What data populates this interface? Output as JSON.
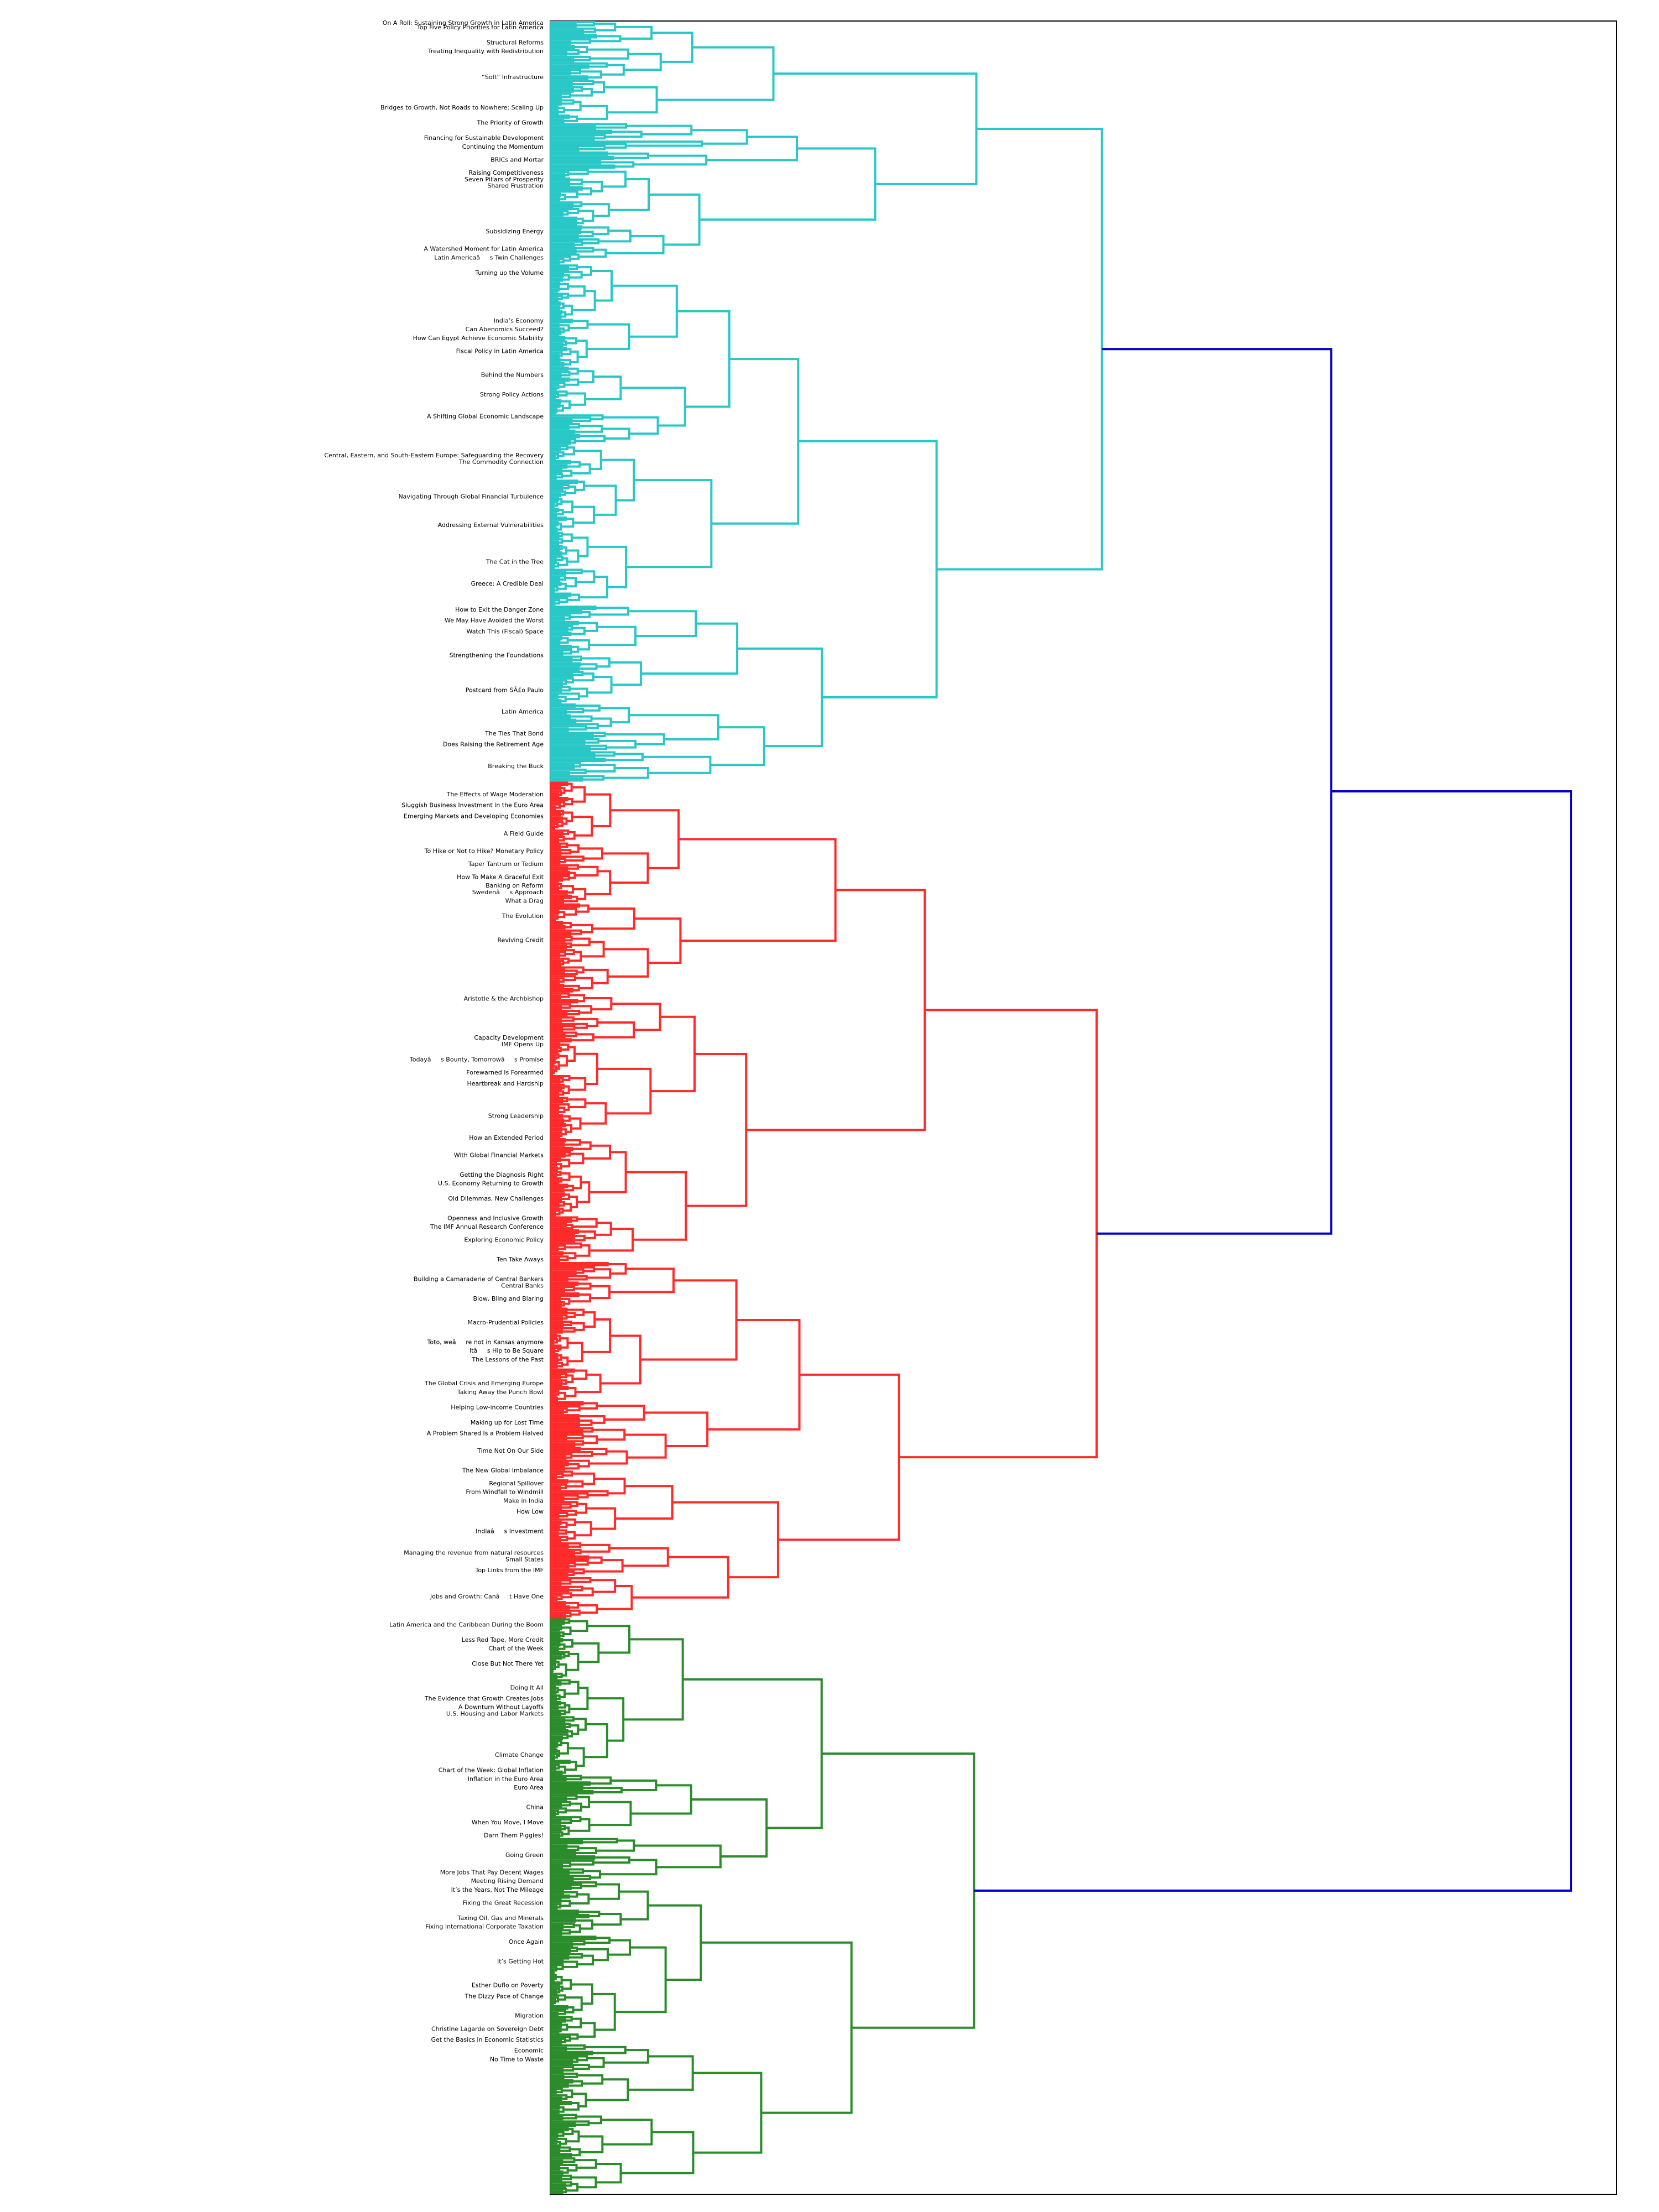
{
  "chart_data": {
    "type": "dendrogram",
    "orientation": "horizontal",
    "grid": false,
    "link_colors": {
      "cluster-1": "#2ac7c7",
      "cluster-2": "#ff2a2a",
      "cluster-3": "#2a8c2a",
      "above-threshold": "#0000cc"
    },
    "clusters": [
      {
        "id": "cluster-1",
        "color": "#2ac7c7",
        "leaf_share": 0.35
      },
      {
        "id": "cluster-2",
        "color": "#ff2a2a",
        "leaf_share": 0.385
      },
      {
        "id": "cluster-3",
        "color": "#2a8c2a",
        "leaf_share": 0.265
      }
    ],
    "top_merge": {
      "left": "cluster-1+cluster-2",
      "right": "cluster-3"
    },
    "legible_leaf_labels": [
      {
        "text": "On A Roll: Sustaining Strong Growth in Latin America",
        "cluster": "cluster-1",
        "pos": 0.001
      },
      {
        "text": "Top Five Policy Priorities for Latin America",
        "cluster": "cluster-1",
        "pos": 0.003
      },
      {
        "text": "Structural Reforms",
        "cluster": "cluster-1",
        "pos": 0.01
      },
      {
        "text": "Treating Inequality with Redistribution",
        "cluster": "cluster-1",
        "pos": 0.014
      },
      {
        "text": "“Soft” Infrastructure",
        "cluster": "cluster-1",
        "pos": 0.026
      },
      {
        "text": "Bridges to Growth, Not Roads to Nowhere: Scaling Up",
        "cluster": "cluster-1",
        "pos": 0.04
      },
      {
        "text": "The Priority of Growth",
        "cluster": "cluster-1",
        "pos": 0.047
      },
      {
        "text": "Financing for Sustainable Development",
        "cluster": "cluster-1",
        "pos": 0.054
      },
      {
        "text": "Continuing the Momentum",
        "cluster": "cluster-1",
        "pos": 0.058
      },
      {
        "text": "BRICs and Mortar",
        "cluster": "cluster-1",
        "pos": 0.064
      },
      {
        "text": "Raising Competitiveness",
        "cluster": "cluster-1",
        "pos": 0.07
      },
      {
        "text": "Seven Pillars of Prosperity",
        "cluster": "cluster-1",
        "pos": 0.073
      },
      {
        "text": "Shared Frustration",
        "cluster": "cluster-1",
        "pos": 0.076
      },
      {
        "text": "Subsidizing Energy",
        "cluster": "cluster-1",
        "pos": 0.097
      },
      {
        "text": "A Watershed Moment for Latin America",
        "cluster": "cluster-1",
        "pos": 0.105
      },
      {
        "text": "Latin Americaâs Twin Challenges",
        "cluster": "cluster-1",
        "pos": 0.109
      },
      {
        "text": "Turning up the Volume",
        "cluster": "cluster-1",
        "pos": 0.116
      },
      {
        "text": "India’s Economy",
        "cluster": "cluster-1",
        "pos": 0.138
      },
      {
        "text": "Can Abenomics Succeed?",
        "cluster": "cluster-1",
        "pos": 0.142
      },
      {
        "text": "How Can Egypt Achieve Economic Stability",
        "cluster": "cluster-1",
        "pos": 0.146
      },
      {
        "text": "Fiscal Policy in Latin America",
        "cluster": "cluster-1",
        "pos": 0.152
      },
      {
        "text": "Behind the Numbers",
        "cluster": "cluster-1",
        "pos": 0.163
      },
      {
        "text": "Strong Policy Actions",
        "cluster": "cluster-1",
        "pos": 0.172
      },
      {
        "text": "A Shifting Global Economic Landscape",
        "cluster": "cluster-1",
        "pos": 0.182
      },
      {
        "text": "Central, Eastern, and South-Eastern Europe: Safeguarding the Recovery",
        "cluster": "cluster-1",
        "pos": 0.2
      },
      {
        "text": "The Commodity Connection",
        "cluster": "cluster-1",
        "pos": 0.203
      },
      {
        "text": "Navigating Through Global Financial Turbulence",
        "cluster": "cluster-1",
        "pos": 0.219
      },
      {
        "text": "Addressing External Vulnerabilities",
        "cluster": "cluster-1",
        "pos": 0.232
      },
      {
        "text": "The Cat in the Tree",
        "cluster": "cluster-1",
        "pos": 0.249
      },
      {
        "text": "Greece: A Credible Deal",
        "cluster": "cluster-1",
        "pos": 0.259
      },
      {
        "text": "How to Exit the Danger Zone",
        "cluster": "cluster-1",
        "pos": 0.271
      },
      {
        "text": "We May Have Avoided the Worst",
        "cluster": "cluster-1",
        "pos": 0.276
      },
      {
        "text": "Watch This (Fiscal) Space",
        "cluster": "cluster-1",
        "pos": 0.281
      },
      {
        "text": "Strengthening the Foundations",
        "cluster": "cluster-1",
        "pos": 0.292
      },
      {
        "text": "Postcard from SÃ£o Paulo",
        "cluster": "cluster-1",
        "pos": 0.308
      },
      {
        "text": "Latin America",
        "cluster": "cluster-1",
        "pos": 0.318
      },
      {
        "text": "The Ties That Bond",
        "cluster": "cluster-1",
        "pos": 0.328
      },
      {
        "text": "Does Raising the Retirement Age",
        "cluster": "cluster-2",
        "pos": 0.333
      },
      {
        "text": "Breaking the Buck",
        "cluster": "cluster-2",
        "pos": 0.343
      },
      {
        "text": "The Effects of Wage Moderation",
        "cluster": "cluster-2",
        "pos": 0.356
      },
      {
        "text": "Sluggish Business Investment in the Euro Area",
        "cluster": "cluster-2",
        "pos": 0.361
      },
      {
        "text": "Emerging Markets and Developing Economies",
        "cluster": "cluster-2",
        "pos": 0.366
      },
      {
        "text": "A Field Guide",
        "cluster": "cluster-2",
        "pos": 0.374
      },
      {
        "text": "To Hike or Not to Hike? Monetary Policy",
        "cluster": "cluster-2",
        "pos": 0.382
      },
      {
        "text": "Taper Tantrum or Tedium",
        "cluster": "cluster-2",
        "pos": 0.388
      },
      {
        "text": "How To Make A Graceful Exit",
        "cluster": "cluster-2",
        "pos": 0.394
      },
      {
        "text": "Banking on Reform",
        "cluster": "cluster-2",
        "pos": 0.398
      },
      {
        "text": "Swedenâs Approach",
        "cluster": "cluster-2",
        "pos": 0.401
      },
      {
        "text": "What a Drag",
        "cluster": "cluster-2",
        "pos": 0.405
      },
      {
        "text": "The Evolution",
        "cluster": "cluster-2",
        "pos": 0.412
      },
      {
        "text": "Reviving Credit",
        "cluster": "cluster-2",
        "pos": 0.423
      },
      {
        "text": "Aristotle & the Archbishop",
        "cluster": "cluster-2",
        "pos": 0.45
      },
      {
        "text": "Capacity Development",
        "cluster": "cluster-2",
        "pos": 0.468
      },
      {
        "text": "IMF Opens Up",
        "cluster": "cluster-2",
        "pos": 0.471
      },
      {
        "text": "Todayâs Bounty, Tomorrowâs Promise",
        "cluster": "cluster-2",
        "pos": 0.478
      },
      {
        "text": "Forewarned Is Forearmed",
        "cluster": "cluster-2",
        "pos": 0.484
      },
      {
        "text": "Heartbreak and Hardship",
        "cluster": "cluster-2",
        "pos": 0.489
      },
      {
        "text": "Strong Leadership",
        "cluster": "cluster-2",
        "pos": 0.504
      },
      {
        "text": "How an Extended Period",
        "cluster": "cluster-2",
        "pos": 0.514
      },
      {
        "text": "With Global Financial Markets",
        "cluster": "cluster-2",
        "pos": 0.522
      },
      {
        "text": "Getting the Diagnosis Right",
        "cluster": "cluster-2",
        "pos": 0.531
      },
      {
        "text": "U.S. Economy Returning to Growth",
        "cluster": "cluster-2",
        "pos": 0.535
      },
      {
        "text": "Old Dilemmas, New Challenges",
        "cluster": "cluster-2",
        "pos": 0.542
      },
      {
        "text": "Openness and Inclusive Growth",
        "cluster": "cluster-2",
        "pos": 0.551
      },
      {
        "text": "The IMF Annual Research Conference",
        "cluster": "cluster-2",
        "pos": 0.555
      },
      {
        "text": "Exploring Economic Policy",
        "cluster": "cluster-2",
        "pos": 0.561
      },
      {
        "text": "Ten Take Aways",
        "cluster": "cluster-2",
        "pos": 0.57
      },
      {
        "text": "Building a Camaraderie of Central Bankers",
        "cluster": "cluster-2",
        "pos": 0.579
      },
      {
        "text": "Central Banks",
        "cluster": "cluster-2",
        "pos": 0.582
      },
      {
        "text": "Blow, Bling and Blaring",
        "cluster": "cluster-2",
        "pos": 0.588
      },
      {
        "text": "Macro-Prudential Policies",
        "cluster": "cluster-2",
        "pos": 0.599
      },
      {
        "text": "Toto, weâre not in Kansas anymore",
        "cluster": "cluster-2",
        "pos": 0.608
      },
      {
        "text": "Itâs Hip to Be Square",
        "cluster": "cluster-2",
        "pos": 0.612
      },
      {
        "text": "The Lessons of the Past",
        "cluster": "cluster-2",
        "pos": 0.616
      },
      {
        "text": "The Global Crisis and Emerging Europe",
        "cluster": "cluster-2",
        "pos": 0.627
      },
      {
        "text": "Taking Away the Punch Bowl",
        "cluster": "cluster-2",
        "pos": 0.631
      },
      {
        "text": "Helping Low-income Countries",
        "cluster": "cluster-2",
        "pos": 0.638
      },
      {
        "text": "Making up for Lost Time",
        "cluster": "cluster-2",
        "pos": 0.645
      },
      {
        "text": "A Problem Shared Is a Problem Halved",
        "cluster": "cluster-2",
        "pos": 0.65
      },
      {
        "text": "Time Not On Our Side",
        "cluster": "cluster-2",
        "pos": 0.658
      },
      {
        "text": "The New Global Imbalance",
        "cluster": "cluster-2",
        "pos": 0.667
      },
      {
        "text": "Regional Spillover",
        "cluster": "cluster-3",
        "pos": 0.673
      },
      {
        "text": "From Windfall to Windmill",
        "cluster": "cluster-3",
        "pos": 0.677
      },
      {
        "text": "Make in India",
        "cluster": "cluster-3",
        "pos": 0.681
      },
      {
        "text": "How Low",
        "cluster": "cluster-3",
        "pos": 0.686
      },
      {
        "text": "Indiaâs Investment",
        "cluster": "cluster-3",
        "pos": 0.695
      },
      {
        "text": "Managing the revenue from natural resources",
        "cluster": "cluster-3",
        "pos": 0.705
      },
      {
        "text": "Small States",
        "cluster": "cluster-3",
        "pos": 0.708
      },
      {
        "text": "Top Links from the IMF",
        "cluster": "cluster-3",
        "pos": 0.713
      },
      {
        "text": "Jobs and Growth: Canât Have One",
        "cluster": "cluster-3",
        "pos": 0.725
      },
      {
        "text": "Latin America and the Caribbean During the Boom",
        "cluster": "cluster-3",
        "pos": 0.738
      },
      {
        "text": "Less Red Tape, More Credit",
        "cluster": "cluster-3",
        "pos": 0.745
      },
      {
        "text": "Chart of the Week",
        "cluster": "cluster-3",
        "pos": 0.749
      },
      {
        "text": "Close But Not There Yet",
        "cluster": "cluster-3",
        "pos": 0.756
      },
      {
        "text": "Doing It All",
        "cluster": "cluster-3",
        "pos": 0.767
      },
      {
        "text": "The Evidence that Growth Creates Jobs",
        "cluster": "cluster-3",
        "pos": 0.772
      },
      {
        "text": "A Downturn Without Layoffs",
        "cluster": "cluster-3",
        "pos": 0.776
      },
      {
        "text": "U.S. Housing and Labor Markets",
        "cluster": "cluster-3",
        "pos": 0.779
      },
      {
        "text": "Climate Change",
        "cluster": "cluster-3",
        "pos": 0.798
      },
      {
        "text": "Chart of the Week: Global Inflation",
        "cluster": "cluster-3",
        "pos": 0.805
      },
      {
        "text": "Inflation in the Euro Area",
        "cluster": "cluster-3",
        "pos": 0.809
      },
      {
        "text": "Euro Area",
        "cluster": "cluster-3",
        "pos": 0.813
      },
      {
        "text": "China",
        "cluster": "cluster-3",
        "pos": 0.822
      },
      {
        "text": "When You Move, I Move",
        "cluster": "cluster-3",
        "pos": 0.829
      },
      {
        "text": "Darn Them Piggies!",
        "cluster": "cluster-3",
        "pos": 0.835
      },
      {
        "text": "Going Green",
        "cluster": "cluster-3",
        "pos": 0.844
      },
      {
        "text": "More Jobs That Pay Decent Wages",
        "cluster": "cluster-3",
        "pos": 0.852
      },
      {
        "text": "Meeting Rising Demand",
        "cluster": "cluster-3",
        "pos": 0.856
      },
      {
        "text": "It’s the Years, Not The Mileage",
        "cluster": "cluster-3",
        "pos": 0.86
      },
      {
        "text": "Fixing the Great Recession",
        "cluster": "cluster-3",
        "pos": 0.866
      },
      {
        "text": "Taxing Oil, Gas and Minerals",
        "cluster": "cluster-3",
        "pos": 0.873
      },
      {
        "text": "Fixing International Corporate Taxation",
        "cluster": "cluster-3",
        "pos": 0.877
      },
      {
        "text": "Once Again",
        "cluster": "cluster-3",
        "pos": 0.884
      },
      {
        "text": "It’s Getting Hot",
        "cluster": "cluster-3",
        "pos": 0.893
      },
      {
        "text": "Esther Duflo on Poverty",
        "cluster": "cluster-3",
        "pos": 0.904
      },
      {
        "text": "The Dizzy Pace of Change",
        "cluster": "cluster-3",
        "pos": 0.909
      },
      {
        "text": "Migration",
        "cluster": "cluster-3",
        "pos": 0.918
      },
      {
        "text": "Christine Lagarde on Sovereign Debt",
        "cluster": "cluster-3",
        "pos": 0.924
      },
      {
        "text": "Get the Basics in Economic Statistics",
        "cluster": "cluster-3",
        "pos": 0.929
      },
      {
        "text": "Economic",
        "cluster": "cluster-3",
        "pos": 0.934
      },
      {
        "text": "No Time to Waste",
        "cluster": "cluster-3",
        "pos": 0.938
      }
    ]
  }
}
